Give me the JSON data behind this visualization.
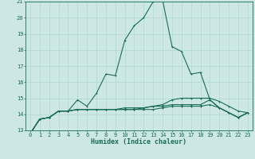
{
  "xlabel": "Humidex (Indice chaleur)",
  "bg_color": "#cde8e4",
  "grid_color": "#b0d8d4",
  "line_color": "#1a6b5a",
  "xlim": [
    -0.5,
    23.5
  ],
  "ylim": [
    13,
    21
  ],
  "xtick_labels": [
    "0",
    "1",
    "2",
    "3",
    "4",
    "5",
    "6",
    "7",
    "8",
    "9",
    "10",
    "11",
    "12",
    "13",
    "14",
    "15",
    "16",
    "17",
    "18",
    "19",
    "20",
    "21",
    "22",
    "23"
  ],
  "ytick_labels": [
    "13",
    "14",
    "15",
    "16",
    "17",
    "18",
    "19",
    "20",
    "21"
  ],
  "series": [
    {
      "x": [
        0,
        1,
        2,
        3,
        4,
        5,
        6,
        7,
        8,
        9,
        10,
        11,
        12,
        13,
        14,
        15,
        16,
        17,
        18,
        19,
        20,
        21,
        22,
        23
      ],
      "y": [
        12.8,
        13.7,
        13.8,
        14.2,
        14.2,
        14.9,
        14.5,
        15.3,
        16.5,
        16.4,
        18.6,
        19.5,
        20.0,
        21.0,
        21.1,
        18.2,
        17.9,
        16.5,
        16.6,
        14.9,
        14.4,
        14.1,
        13.8,
        14.1
      ]
    },
    {
      "x": [
        0,
        1,
        2,
        3,
        4,
        5,
        6,
        7,
        8,
        9,
        10,
        11,
        12,
        13,
        14,
        15,
        16,
        17,
        18,
        19,
        20,
        21,
        22,
        23
      ],
      "y": [
        12.8,
        13.7,
        13.8,
        14.2,
        14.2,
        14.3,
        14.3,
        14.3,
        14.3,
        14.3,
        14.4,
        14.4,
        14.4,
        14.5,
        14.6,
        14.9,
        15.0,
        15.0,
        15.0,
        15.0,
        14.8,
        14.5,
        14.2,
        14.1
      ]
    },
    {
      "x": [
        0,
        1,
        2,
        3,
        4,
        5,
        6,
        7,
        8,
        9,
        10,
        11,
        12,
        13,
        14,
        15,
        16,
        17,
        18,
        19,
        20,
        21,
        22,
        23
      ],
      "y": [
        12.8,
        13.7,
        13.8,
        14.2,
        14.2,
        14.3,
        14.3,
        14.3,
        14.3,
        14.3,
        14.3,
        14.3,
        14.4,
        14.5,
        14.5,
        14.6,
        14.6,
        14.6,
        14.6,
        14.9,
        14.4,
        14.1,
        13.8,
        14.1
      ]
    },
    {
      "x": [
        0,
        1,
        2,
        3,
        4,
        5,
        6,
        7,
        8,
        9,
        10,
        11,
        12,
        13,
        14,
        15,
        16,
        17,
        18,
        19,
        20,
        21,
        22,
        23
      ],
      "y": [
        12.8,
        13.7,
        13.8,
        14.2,
        14.2,
        14.3,
        14.3,
        14.3,
        14.3,
        14.3,
        14.3,
        14.3,
        14.3,
        14.3,
        14.4,
        14.5,
        14.5,
        14.5,
        14.5,
        14.6,
        14.4,
        14.1,
        13.8,
        14.1
      ]
    }
  ]
}
